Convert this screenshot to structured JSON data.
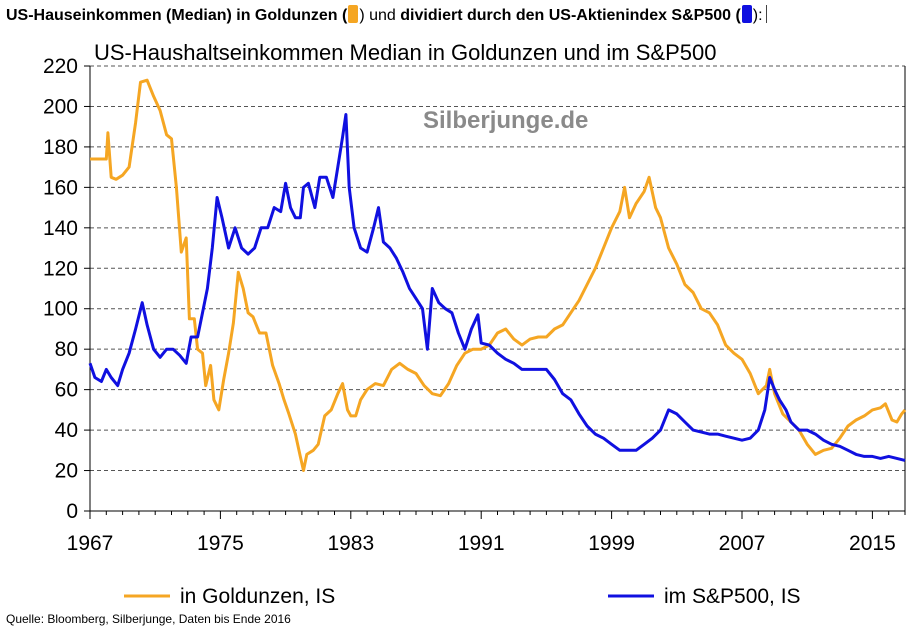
{
  "header": {
    "part1": "US-Hauseinkommen (Median) in Goldunzen (",
    "part2": ") und ",
    "part3": "dividiert durch den US-Aktienindex S&P500 (",
    "part4": "):"
  },
  "source": "Quelle: Bloomberg, Silberjunge, Daten bis Ende 2016",
  "colors": {
    "gold": "#F5A623",
    "sp500": "#1010E0",
    "grid": "#555555"
  },
  "chart_data": {
    "type": "line",
    "title": "US-Haushaltseinkommen Median in Goldunzen und im S&P500",
    "watermark": "Silberjunge.de",
    "xlim": [
      1967,
      2017
    ],
    "ylim": [
      0,
      220
    ],
    "x_ticks": [
      1967,
      1975,
      1983,
      1991,
      1999,
      2007,
      2015
    ],
    "y_ticks": [
      0,
      20,
      40,
      60,
      80,
      100,
      120,
      140,
      160,
      180,
      200,
      220
    ],
    "grid": "horizontal dashed",
    "legend_position": "bottom",
    "series": [
      {
        "name": "in Goldunzen, IS",
        "color": "#F5A623",
        "points": [
          [
            1967.0,
            174
          ],
          [
            1968.0,
            174
          ],
          [
            1968.1,
            187
          ],
          [
            1968.3,
            165
          ],
          [
            1968.6,
            164
          ],
          [
            1969.0,
            166
          ],
          [
            1969.4,
            170
          ],
          [
            1969.8,
            192
          ],
          [
            1970.1,
            212
          ],
          [
            1970.5,
            213
          ],
          [
            1970.9,
            205
          ],
          [
            1971.3,
            198
          ],
          [
            1971.7,
            186
          ],
          [
            1972.0,
            184
          ],
          [
            1972.3,
            160
          ],
          [
            1972.6,
            128
          ],
          [
            1972.9,
            135
          ],
          [
            1973.1,
            95
          ],
          [
            1973.4,
            95
          ],
          [
            1973.6,
            80
          ],
          [
            1973.9,
            78
          ],
          [
            1974.1,
            62
          ],
          [
            1974.4,
            72
          ],
          [
            1974.6,
            55
          ],
          [
            1974.9,
            50
          ],
          [
            1975.2,
            65
          ],
          [
            1975.5,
            78
          ],
          [
            1975.8,
            93
          ],
          [
            1976.1,
            118
          ],
          [
            1976.4,
            110
          ],
          [
            1976.7,
            98
          ],
          [
            1977.0,
            96
          ],
          [
            1977.4,
            88
          ],
          [
            1977.8,
            88
          ],
          [
            1978.2,
            72
          ],
          [
            1978.6,
            63
          ],
          [
            1978.9,
            55
          ],
          [
            1979.2,
            48
          ],
          [
            1979.6,
            38
          ],
          [
            1979.9,
            27
          ],
          [
            1980.1,
            20
          ],
          [
            1980.3,
            28
          ],
          [
            1980.7,
            30
          ],
          [
            1981.0,
            33
          ],
          [
            1981.4,
            47
          ],
          [
            1981.8,
            50
          ],
          [
            1982.2,
            58
          ],
          [
            1982.5,
            63
          ],
          [
            1982.8,
            50
          ],
          [
            1983.0,
            47
          ],
          [
            1983.3,
            47
          ],
          [
            1983.6,
            55
          ],
          [
            1984.0,
            60
          ],
          [
            1984.5,
            63
          ],
          [
            1985.0,
            62
          ],
          [
            1985.5,
            70
          ],
          [
            1986.0,
            73
          ],
          [
            1986.5,
            70
          ],
          [
            1987.0,
            68
          ],
          [
            1987.5,
            62
          ],
          [
            1988.0,
            58
          ],
          [
            1988.5,
            57
          ],
          [
            1989.0,
            63
          ],
          [
            1989.5,
            72
          ],
          [
            1990.0,
            78
          ],
          [
            1990.5,
            80
          ],
          [
            1991.0,
            80
          ],
          [
            1991.5,
            82
          ],
          [
            1992.0,
            88
          ],
          [
            1992.5,
            90
          ],
          [
            1993.0,
            85
          ],
          [
            1993.5,
            82
          ],
          [
            1994.0,
            85
          ],
          [
            1994.5,
            86
          ],
          [
            1995.0,
            86
          ],
          [
            1995.5,
            90
          ],
          [
            1996.0,
            92
          ],
          [
            1996.5,
            98
          ],
          [
            1997.0,
            104
          ],
          [
            1997.5,
            112
          ],
          [
            1998.0,
            120
          ],
          [
            1998.5,
            130
          ],
          [
            1999.0,
            140
          ],
          [
            1999.5,
            148
          ],
          [
            1999.8,
            160
          ],
          [
            2000.1,
            145
          ],
          [
            2000.5,
            152
          ],
          [
            2001.0,
            158
          ],
          [
            2001.3,
            165
          ],
          [
            2001.7,
            150
          ],
          [
            2002.0,
            145
          ],
          [
            2002.5,
            130
          ],
          [
            2003.0,
            122
          ],
          [
            2003.5,
            112
          ],
          [
            2004.0,
            108
          ],
          [
            2004.5,
            100
          ],
          [
            2005.0,
            98
          ],
          [
            2005.5,
            92
          ],
          [
            2006.0,
            82
          ],
          [
            2006.5,
            78
          ],
          [
            2007.0,
            75
          ],
          [
            2007.5,
            68
          ],
          [
            2008.0,
            58
          ],
          [
            2008.5,
            62
          ],
          [
            2008.7,
            70
          ],
          [
            2009.0,
            58
          ],
          [
            2009.5,
            48
          ],
          [
            2010.0,
            44
          ],
          [
            2010.5,
            40
          ],
          [
            2011.0,
            33
          ],
          [
            2011.5,
            28
          ],
          [
            2012.0,
            30
          ],
          [
            2012.5,
            31
          ],
          [
            2013.0,
            36
          ],
          [
            2013.5,
            42
          ],
          [
            2014.0,
            45
          ],
          [
            2014.5,
            47
          ],
          [
            2015.0,
            50
          ],
          [
            2015.5,
            51
          ],
          [
            2015.8,
            53
          ],
          [
            2016.2,
            45
          ],
          [
            2016.5,
            44
          ],
          [
            2016.8,
            48
          ],
          [
            2017.0,
            50
          ]
        ]
      },
      {
        "name": "im S&P500, IS",
        "color": "#1010E0",
        "points": [
          [
            1967.0,
            73
          ],
          [
            1967.3,
            66
          ],
          [
            1967.7,
            64
          ],
          [
            1968.0,
            70
          ],
          [
            1968.3,
            66
          ],
          [
            1968.7,
            62
          ],
          [
            1969.0,
            70
          ],
          [
            1969.4,
            78
          ],
          [
            1969.8,
            90
          ],
          [
            1970.2,
            103
          ],
          [
            1970.5,
            92
          ],
          [
            1970.9,
            80
          ],
          [
            1971.3,
            76
          ],
          [
            1971.7,
            80
          ],
          [
            1972.1,
            80
          ],
          [
            1972.5,
            77
          ],
          [
            1972.9,
            73
          ],
          [
            1973.2,
            86
          ],
          [
            1973.6,
            86
          ],
          [
            1973.9,
            98
          ],
          [
            1974.2,
            110
          ],
          [
            1974.5,
            130
          ],
          [
            1974.8,
            155
          ],
          [
            1975.1,
            145
          ],
          [
            1975.5,
            130
          ],
          [
            1975.9,
            140
          ],
          [
            1976.3,
            130
          ],
          [
            1976.7,
            127
          ],
          [
            1977.1,
            130
          ],
          [
            1977.5,
            140
          ],
          [
            1977.9,
            140
          ],
          [
            1978.3,
            150
          ],
          [
            1978.7,
            148
          ],
          [
            1979.0,
            162
          ],
          [
            1979.3,
            150
          ],
          [
            1979.6,
            145
          ],
          [
            1979.9,
            145
          ],
          [
            1980.1,
            160
          ],
          [
            1980.4,
            162
          ],
          [
            1980.8,
            150
          ],
          [
            1981.1,
            165
          ],
          [
            1981.5,
            165
          ],
          [
            1981.9,
            155
          ],
          [
            1982.2,
            170
          ],
          [
            1982.5,
            185
          ],
          [
            1982.7,
            196
          ],
          [
            1982.9,
            160
          ],
          [
            1983.2,
            140
          ],
          [
            1983.6,
            130
          ],
          [
            1984.0,
            128
          ],
          [
            1984.4,
            140
          ],
          [
            1984.7,
            150
          ],
          [
            1985.0,
            133
          ],
          [
            1985.4,
            130
          ],
          [
            1985.8,
            125
          ],
          [
            1986.2,
            118
          ],
          [
            1986.6,
            110
          ],
          [
            1987.0,
            105
          ],
          [
            1987.4,
            100
          ],
          [
            1987.7,
            80
          ],
          [
            1988.0,
            110
          ],
          [
            1988.4,
            103
          ],
          [
            1988.8,
            100
          ],
          [
            1989.2,
            98
          ],
          [
            1989.6,
            88
          ],
          [
            1990.0,
            80
          ],
          [
            1990.4,
            90
          ],
          [
            1990.8,
            97
          ],
          [
            1991.0,
            83
          ],
          [
            1991.5,
            82
          ],
          [
            1992.0,
            78
          ],
          [
            1992.5,
            75
          ],
          [
            1993.0,
            73
          ],
          [
            1993.5,
            70
          ],
          [
            1994.0,
            70
          ],
          [
            1994.5,
            70
          ],
          [
            1995.0,
            70
          ],
          [
            1995.5,
            65
          ],
          [
            1996.0,
            58
          ],
          [
            1996.5,
            55
          ],
          [
            1997.0,
            48
          ],
          [
            1997.5,
            42
          ],
          [
            1998.0,
            38
          ],
          [
            1998.5,
            36
          ],
          [
            1999.0,
            33
          ],
          [
            1999.5,
            30
          ],
          [
            2000.0,
            30
          ],
          [
            2000.5,
            30
          ],
          [
            2001.0,
            33
          ],
          [
            2001.5,
            36
          ],
          [
            2002.0,
            40
          ],
          [
            2002.5,
            50
          ],
          [
            2003.0,
            48
          ],
          [
            2003.5,
            44
          ],
          [
            2004.0,
            40
          ],
          [
            2004.5,
            39
          ],
          [
            2005.0,
            38
          ],
          [
            2005.5,
            38
          ],
          [
            2006.0,
            37
          ],
          [
            2006.5,
            36
          ],
          [
            2007.0,
            35
          ],
          [
            2007.5,
            36
          ],
          [
            2008.0,
            40
          ],
          [
            2008.4,
            50
          ],
          [
            2008.7,
            66
          ],
          [
            2009.0,
            60
          ],
          [
            2009.3,
            55
          ],
          [
            2009.7,
            50
          ],
          [
            2010.0,
            44
          ],
          [
            2010.5,
            40
          ],
          [
            2011.0,
            40
          ],
          [
            2011.5,
            38
          ],
          [
            2012.0,
            35
          ],
          [
            2012.5,
            33
          ],
          [
            2013.0,
            32
          ],
          [
            2013.5,
            30
          ],
          [
            2014.0,
            28
          ],
          [
            2014.5,
            27
          ],
          [
            2015.0,
            27
          ],
          [
            2015.5,
            26
          ],
          [
            2016.0,
            27
          ],
          [
            2016.5,
            26
          ],
          [
            2017.0,
            25
          ]
        ]
      }
    ]
  }
}
